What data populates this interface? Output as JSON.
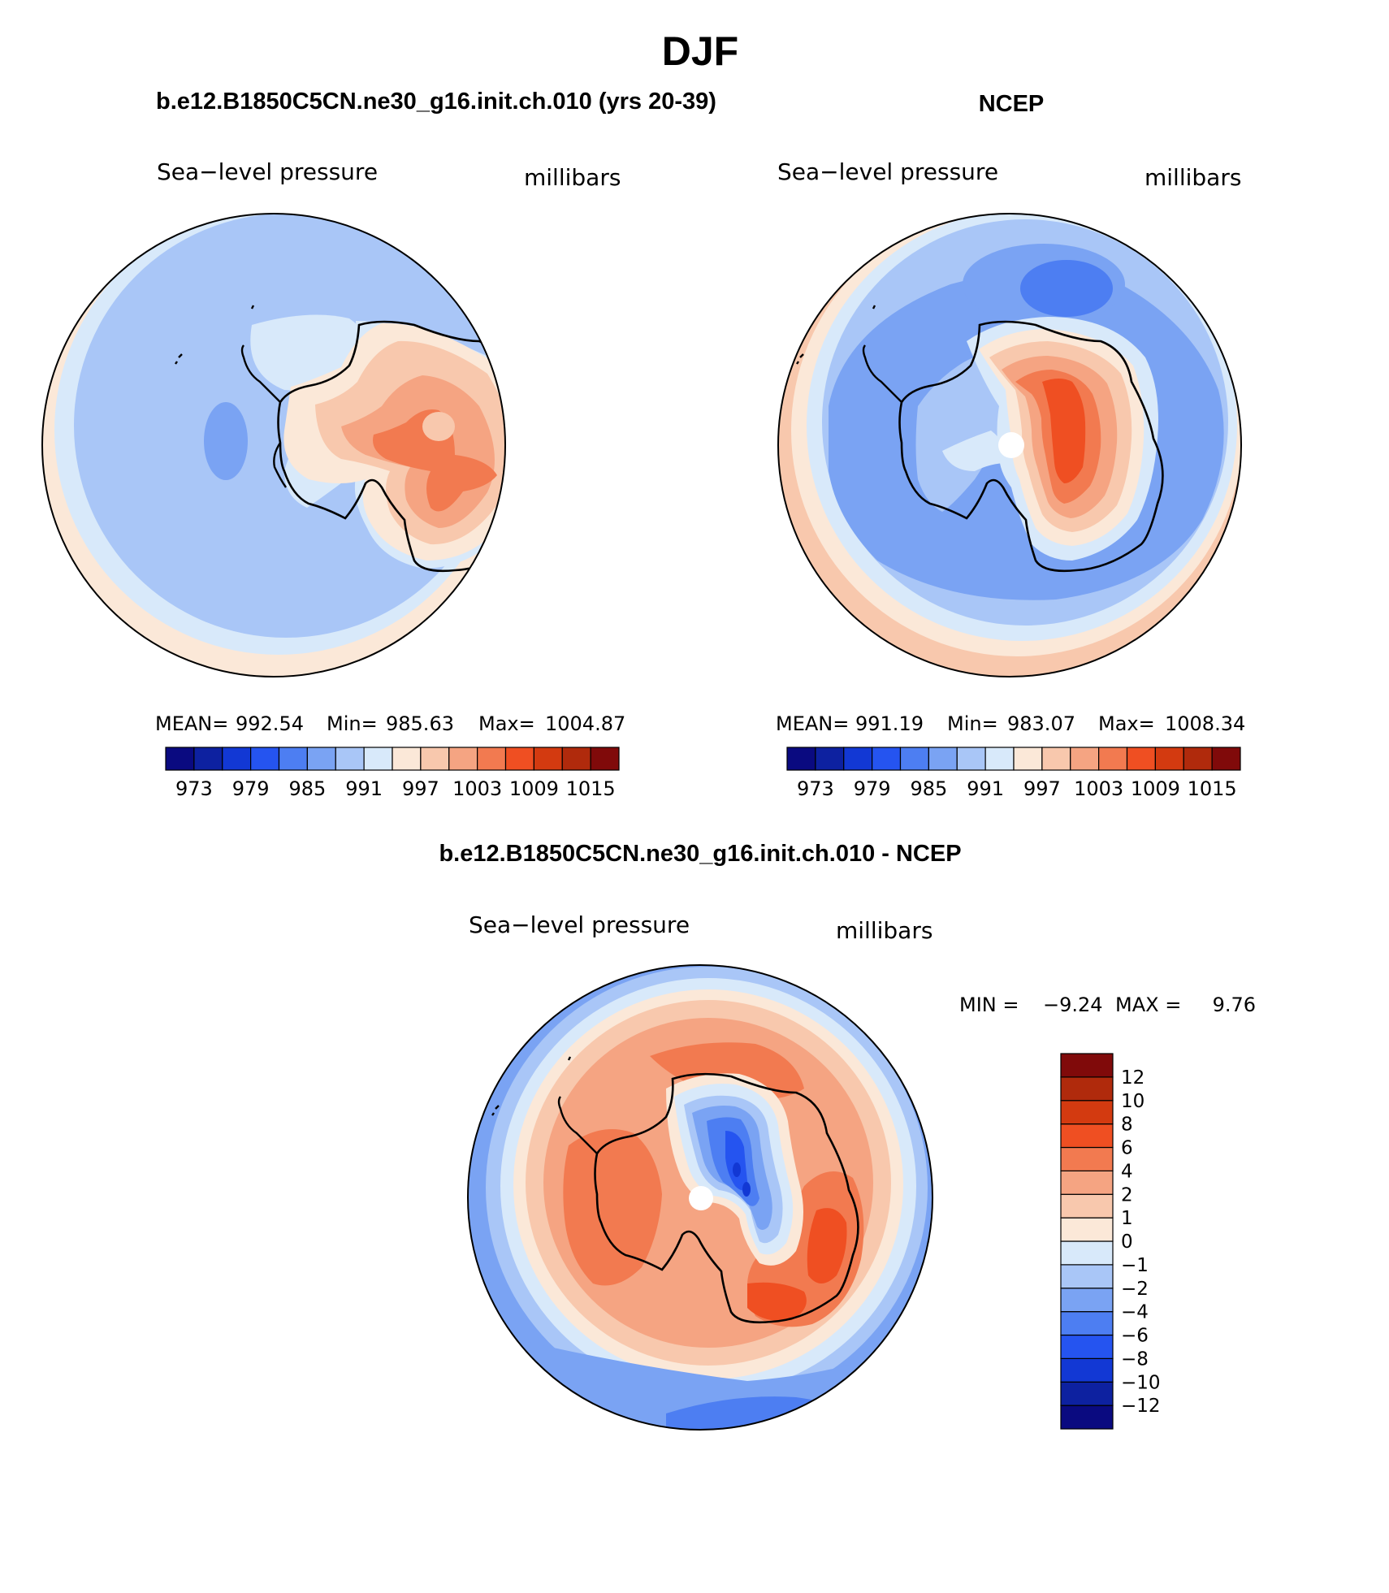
{
  "figure": {
    "title": "DJF"
  },
  "panels": [
    {
      "title": "b.e12.B1850C5CN.ne30_g16.init.ch.010 (yrs 20-39)",
      "left_label": "Sea−level pressure",
      "right_label": "millibars",
      "stats": {
        "mean_label": "MEAN=",
        "mean": "992.54",
        "min_label": "Min=",
        "min": "985.63",
        "max_label": "Max=",
        "max": "1004.87"
      },
      "field": "model"
    },
    {
      "title": "NCEP",
      "left_label": "Sea−level pressure",
      "right_label": "millibars",
      "stats": {
        "mean_label": "MEAN=",
        "mean": "991.19",
        "min_label": "Min=",
        "min": "983.07",
        "max_label": "Max=",
        "max": "1008.34"
      },
      "field": "ncep"
    },
    {
      "title": "b.e12.B1850C5CN.ne30_g16.init.ch.010 - NCEP",
      "left_label": "Sea−level pressure",
      "right_label": "millibars",
      "minmax": {
        "min_label": "MIN =",
        "min": "−9.24",
        "max_label": "MAX =",
        "max": "9.76"
      },
      "field": "diff"
    }
  ],
  "abs_colorbar": {
    "colors": [
      "#0a0a80",
      "#0d21a0",
      "#1238d4",
      "#2554f0",
      "#4d7ef2",
      "#7aa3f3",
      "#a9c6f7",
      "#d8e9fa",
      "#fbe8d8",
      "#f8c8ad",
      "#f5a482",
      "#f27a50",
      "#ef4f22",
      "#d33a10",
      "#b02a0c",
      "#800a0a"
    ],
    "tick_labels": [
      "973",
      "979",
      "985",
      "991",
      "997",
      "1003",
      "1009",
      "1015"
    ]
  },
  "diff_colorbar": {
    "colors": [
      "#0a0a80",
      "#0d21a0",
      "#1238d4",
      "#2554f0",
      "#4d7ef2",
      "#7aa3f3",
      "#a9c6f7",
      "#d8e9fa",
      "#fbe8d8",
      "#f8c8ad",
      "#f5a482",
      "#f27a50",
      "#ef4f22",
      "#d33a10",
      "#b02a0c",
      "#800a0a"
    ],
    "tick_labels": [
      "−12",
      "−10",
      "−8",
      "−6",
      "−4",
      "−2",
      "−1",
      "0",
      "1",
      "2",
      "4",
      "6",
      "8",
      "10",
      "12"
    ]
  }
}
